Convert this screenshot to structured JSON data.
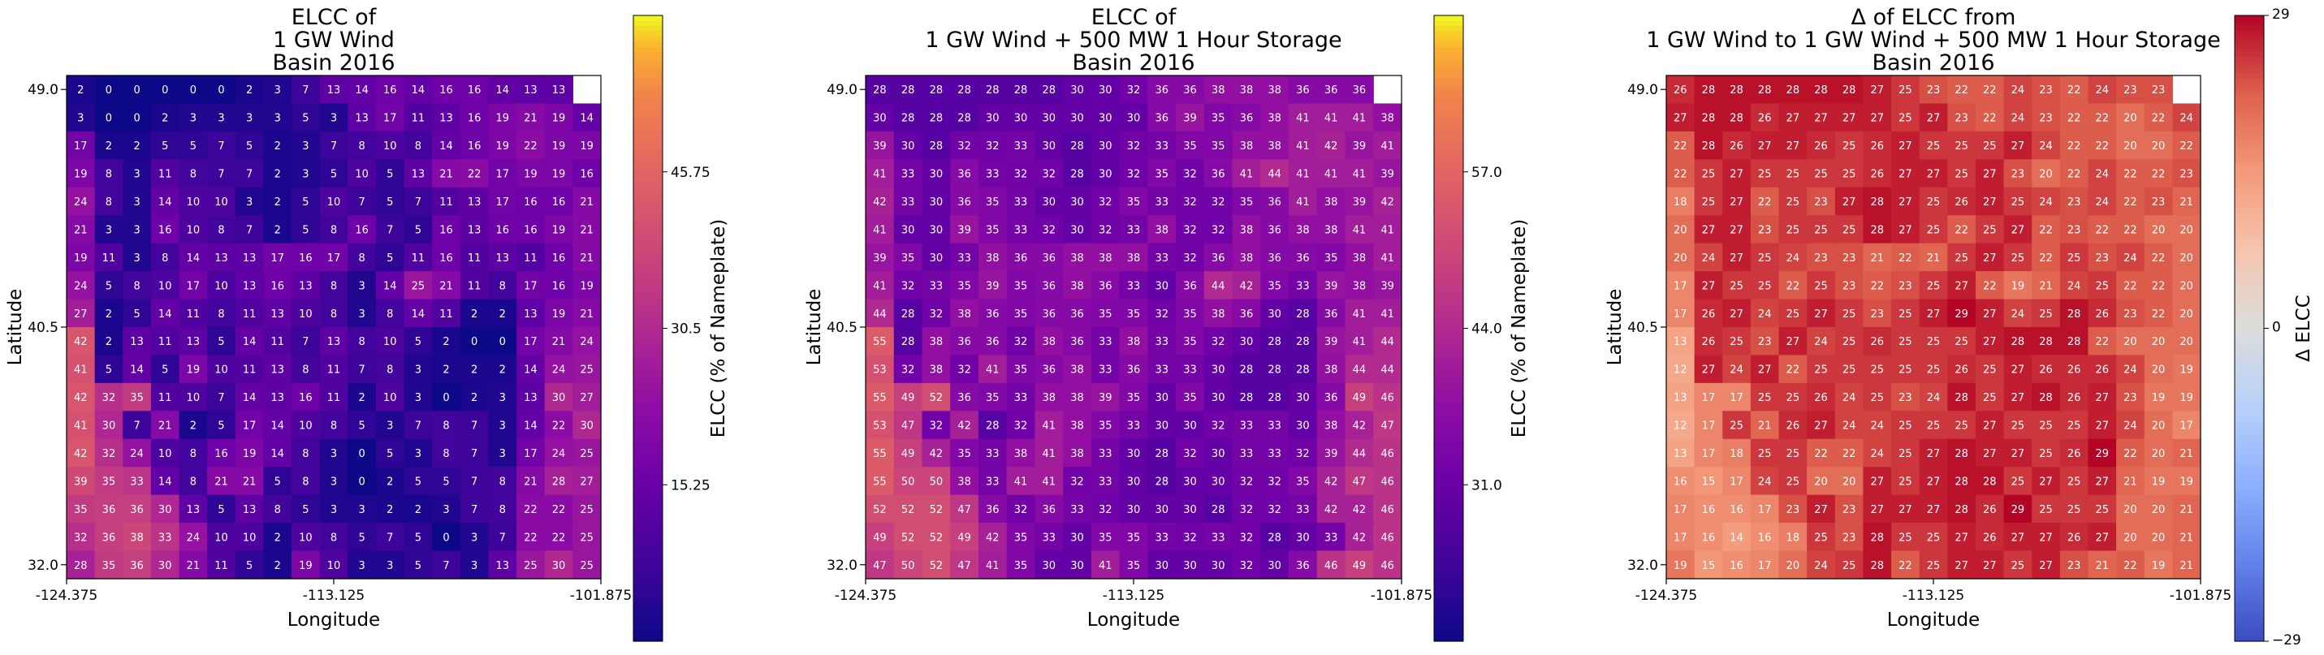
{
  "chart_data": [
    {
      "type": "heatmap",
      "title": [
        "ELCC of",
        "1 GW Wind",
        "Basin 2016"
      ],
      "xlabel": "Longitude",
      "ylabel": "Latitude",
      "xticks": [
        "-124.375",
        "-113.125",
        "-101.875"
      ],
      "yticks": [
        "49.0",
        "40.5",
        "32.0"
      ],
      "colormap": "plasma",
      "colorbar_label": "ELCC (% of Nameplate)",
      "colorbar_ticks": [
        "15.25",
        "30.5",
        "45.75"
      ],
      "vmin": 0,
      "vmax": 61,
      "values": [
        [
          2,
          0,
          0,
          0,
          0,
          0,
          2,
          3,
          7,
          13,
          14,
          16,
          14,
          16,
          16,
          14,
          13,
          13
        ],
        [
          3,
          0,
          0,
          2,
          3,
          3,
          3,
          3,
          5,
          3,
          13,
          17,
          11,
          13,
          16,
          19,
          21,
          19,
          14
        ],
        [
          17,
          2,
          2,
          5,
          5,
          7,
          5,
          2,
          3,
          7,
          8,
          10,
          8,
          14,
          16,
          19,
          22,
          19,
          19
        ],
        [
          19,
          8,
          3,
          11,
          8,
          7,
          7,
          2,
          3,
          5,
          10,
          5,
          13,
          21,
          22,
          17,
          19,
          19,
          16
        ],
        [
          24,
          8,
          3,
          14,
          10,
          10,
          3,
          2,
          5,
          10,
          7,
          5,
          7,
          11,
          13,
          17,
          16,
          16,
          21
        ],
        [
          21,
          3,
          3,
          16,
          10,
          8,
          7,
          2,
          5,
          8,
          16,
          7,
          5,
          16,
          13,
          16,
          16,
          19,
          21
        ],
        [
          19,
          11,
          3,
          8,
          14,
          13,
          13,
          17,
          16,
          17,
          8,
          5,
          11,
          16,
          11,
          13,
          11,
          16,
          21
        ],
        [
          24,
          5,
          8,
          10,
          17,
          10,
          13,
          16,
          13,
          8,
          3,
          14,
          25,
          21,
          11,
          8,
          17,
          16,
          19
        ],
        [
          27,
          2,
          5,
          14,
          11,
          8,
          11,
          13,
          10,
          8,
          3,
          8,
          14,
          11,
          2,
          2,
          13,
          19,
          21
        ],
        [
          42,
          2,
          13,
          11,
          13,
          5,
          14,
          11,
          7,
          13,
          8,
          10,
          5,
          2,
          0,
          0,
          17,
          21,
          24
        ],
        [
          41,
          5,
          14,
          5,
          19,
          10,
          11,
          13,
          8,
          11,
          7,
          8,
          3,
          2,
          2,
          2,
          14,
          24,
          25
        ],
        [
          42,
          32,
          35,
          11,
          10,
          7,
          14,
          13,
          16,
          11,
          2,
          10,
          3,
          0,
          2,
          3,
          13,
          30,
          27
        ],
        [
          41,
          30,
          7,
          21,
          2,
          5,
          17,
          14,
          10,
          8,
          5,
          3,
          7,
          8,
          7,
          3,
          14,
          22,
          30
        ],
        [
          42,
          32,
          24,
          10,
          8,
          16,
          19,
          14,
          8,
          3,
          0,
          5,
          3,
          8,
          7,
          3,
          17,
          24,
          25
        ],
        [
          39,
          35,
          33,
          14,
          8,
          21,
          21,
          5,
          8,
          3,
          0,
          2,
          5,
          5,
          7,
          8,
          21,
          28,
          27
        ],
        [
          35,
          36,
          36,
          30,
          13,
          5,
          13,
          8,
          5,
          3,
          3,
          2,
          2,
          3,
          7,
          8,
          22,
          22,
          25
        ],
        [
          32,
          36,
          38,
          33,
          24,
          10,
          10,
          2,
          10,
          8,
          5,
          7,
          5,
          0,
          3,
          7,
          22,
          22,
          25
        ],
        [
          28,
          35,
          36,
          30,
          21,
          11,
          5,
          2,
          19,
          10,
          3,
          3,
          5,
          7,
          3,
          13,
          25,
          30,
          25
        ]
      ]
    },
    {
      "type": "heatmap",
      "title": [
        "ELCC of",
        "1 GW Wind + 500 MW 1 Hour Storage",
        "Basin 2016"
      ],
      "xlabel": "Longitude",
      "ylabel": "Latitude",
      "xticks": [
        "-124.375",
        "-113.125",
        "-101.875"
      ],
      "yticks": [
        "49.0",
        "40.5",
        "32.0"
      ],
      "colormap": "plasma",
      "colorbar_label": "ELCC (% of Nameplate)",
      "colorbar_ticks": [
        "31.0",
        "44.0",
        "57.0"
      ],
      "vmin": 18,
      "vmax": 70,
      "values": [
        [
          28,
          28,
          28,
          28,
          28,
          28,
          28,
          30,
          30,
          32,
          36,
          36,
          38,
          38,
          38,
          36,
          36,
          36
        ],
        [
          30,
          28,
          28,
          28,
          30,
          30,
          30,
          30,
          30,
          30,
          36,
          39,
          35,
          36,
          38,
          41,
          41,
          41,
          38
        ],
        [
          39,
          30,
          28,
          32,
          32,
          33,
          30,
          28,
          30,
          32,
          33,
          35,
          35,
          38,
          38,
          41,
          42,
          39,
          41
        ],
        [
          41,
          33,
          30,
          36,
          33,
          32,
          32,
          28,
          30,
          32,
          35,
          32,
          36,
          41,
          44,
          41,
          41,
          41,
          39
        ],
        [
          42,
          33,
          30,
          36,
          35,
          33,
          30,
          30,
          32,
          35,
          33,
          32,
          32,
          35,
          36,
          41,
          38,
          39,
          42
        ],
        [
          41,
          30,
          30,
          39,
          35,
          33,
          32,
          30,
          32,
          33,
          38,
          32,
          32,
          38,
          36,
          38,
          38,
          41,
          41
        ],
        [
          39,
          35,
          30,
          33,
          38,
          36,
          36,
          38,
          38,
          38,
          33,
          32,
          36,
          38,
          36,
          36,
          35,
          38,
          41
        ],
        [
          41,
          32,
          33,
          35,
          39,
          35,
          36,
          38,
          36,
          33,
          30,
          36,
          44,
          42,
          35,
          33,
          39,
          38,
          39
        ],
        [
          44,
          28,
          32,
          38,
          36,
          35,
          36,
          36,
          35,
          35,
          32,
          35,
          38,
          36,
          30,
          28,
          36,
          41,
          41
        ],
        [
          55,
          28,
          38,
          36,
          36,
          32,
          38,
          36,
          33,
          38,
          33,
          35,
          32,
          30,
          28,
          28,
          39,
          41,
          44
        ],
        [
          53,
          32,
          38,
          32,
          41,
          35,
          36,
          38,
          33,
          36,
          33,
          33,
          30,
          28,
          28,
          28,
          38,
          44,
          44
        ],
        [
          55,
          49,
          52,
          36,
          35,
          33,
          38,
          38,
          39,
          35,
          30,
          35,
          30,
          28,
          28,
          30,
          36,
          49,
          46
        ],
        [
          53,
          47,
          32,
          42,
          28,
          32,
          41,
          38,
          35,
          33,
          30,
          30,
          32,
          33,
          33,
          30,
          38,
          42,
          47
        ],
        [
          55,
          49,
          42,
          35,
          33,
          38,
          41,
          38,
          33,
          30,
          28,
          32,
          30,
          33,
          33,
          32,
          39,
          44,
          46
        ],
        [
          55,
          50,
          50,
          38,
          33,
          41,
          41,
          32,
          33,
          30,
          28,
          30,
          30,
          32,
          32,
          35,
          42,
          47,
          46
        ],
        [
          52,
          52,
          52,
          47,
          36,
          32,
          36,
          33,
          32,
          30,
          30,
          30,
          28,
          32,
          32,
          33,
          42,
          42,
          46
        ],
        [
          49,
          52,
          52,
          49,
          42,
          35,
          33,
          30,
          35,
          35,
          33,
          32,
          33,
          32,
          28,
          30,
          33,
          42,
          46
        ],
        [
          47,
          50,
          52,
          47,
          41,
          35,
          30,
          30,
          41,
          35,
          30,
          30,
          30,
          32,
          30,
          36,
          46,
          49,
          46
        ]
      ]
    },
    {
      "type": "heatmap",
      "title": [
        "Δ of ELCC from",
        "1 GW Wind to 1 GW Wind + 500 MW 1 Hour Storage",
        "Basin 2016"
      ],
      "xlabel": "Longitude",
      "ylabel": "Latitude",
      "xticks": [
        "-124.375",
        "-113.125",
        "-101.875"
      ],
      "yticks": [
        "49.0",
        "40.5",
        "32.0"
      ],
      "colormap": "coolwarm",
      "colorbar_label": "Δ ELCC",
      "colorbar_ticks": [
        "29",
        "0",
        "−29"
      ],
      "vmin": -29,
      "vmax": 29,
      "values": [
        [
          26,
          28,
          28,
          28,
          28,
          28,
          28,
          27,
          25,
          23,
          22,
          22,
          24,
          23,
          22,
          24,
          23,
          23
        ],
        [
          27,
          28,
          28,
          26,
          27,
          27,
          27,
          27,
          25,
          27,
          23,
          22,
          24,
          23,
          22,
          22,
          20,
          22,
          24
        ],
        [
          22,
          28,
          26,
          27,
          27,
          26,
          25,
          26,
          27,
          25,
          25,
          25,
          27,
          24,
          22,
          22,
          20,
          20,
          22
        ],
        [
          22,
          25,
          27,
          25,
          25,
          25,
          25,
          26,
          27,
          27,
          25,
          27,
          23,
          20,
          22,
          24,
          22,
          22,
          23
        ],
        [
          18,
          25,
          27,
          22,
          25,
          23,
          27,
          28,
          27,
          25,
          26,
          27,
          25,
          24,
          23,
          24,
          22,
          23,
          21
        ],
        [
          20,
          27,
          27,
          23,
          25,
          25,
          25,
          28,
          27,
          25,
          22,
          25,
          27,
          22,
          23,
          22,
          22,
          20,
          20
        ],
        [
          20,
          24,
          27,
          25,
          24,
          23,
          23,
          21,
          22,
          21,
          25,
          27,
          25,
          22,
          25,
          23,
          24,
          22,
          20
        ],
        [
          17,
          27,
          25,
          25,
          22,
          25,
          23,
          22,
          23,
          25,
          27,
          22,
          19,
          21,
          24,
          25,
          22,
          22,
          20
        ],
        [
          17,
          26,
          27,
          24,
          25,
          27,
          25,
          23,
          25,
          27,
          29,
          27,
          24,
          25,
          28,
          26,
          23,
          22,
          20
        ],
        [
          13,
          26,
          25,
          23,
          27,
          24,
          25,
          26,
          25,
          25,
          25,
          27,
          28,
          28,
          28,
          22,
          20,
          20,
          20
        ],
        [
          12,
          27,
          24,
          27,
          22,
          25,
          25,
          25,
          25,
          25,
          26,
          25,
          27,
          26,
          26,
          26,
          24,
          20,
          19
        ],
        [
          13,
          17,
          17,
          25,
          25,
          26,
          24,
          25,
          23,
          24,
          28,
          25,
          27,
          28,
          26,
          27,
          23,
          19,
          19
        ],
        [
          12,
          17,
          25,
          21,
          26,
          27,
          24,
          24,
          25,
          25,
          25,
          27,
          25,
          25,
          25,
          27,
          24,
          20,
          17
        ],
        [
          13,
          17,
          18,
          25,
          25,
          22,
          22,
          24,
          25,
          27,
          28,
          27,
          27,
          25,
          26,
          29,
          22,
          20,
          21
        ],
        [
          16,
          15,
          17,
          24,
          25,
          20,
          20,
          27,
          25,
          27,
          28,
          28,
          25,
          27,
          25,
          27,
          21,
          19,
          19
        ],
        [
          17,
          16,
          16,
          17,
          23,
          27,
          23,
          27,
          27,
          27,
          28,
          26,
          29,
          25,
          25,
          25,
          20,
          20,
          21
        ],
        [
          17,
          16,
          14,
          16,
          18,
          25,
          23,
          28,
          25,
          25,
          27,
          26,
          27,
          27,
          26,
          27,
          20,
          20,
          21
        ],
        [
          19,
          15,
          16,
          17,
          20,
          24,
          25,
          28,
          22,
          25,
          27,
          27,
          25,
          27,
          23,
          21,
          22,
          19,
          21
        ]
      ]
    }
  ]
}
